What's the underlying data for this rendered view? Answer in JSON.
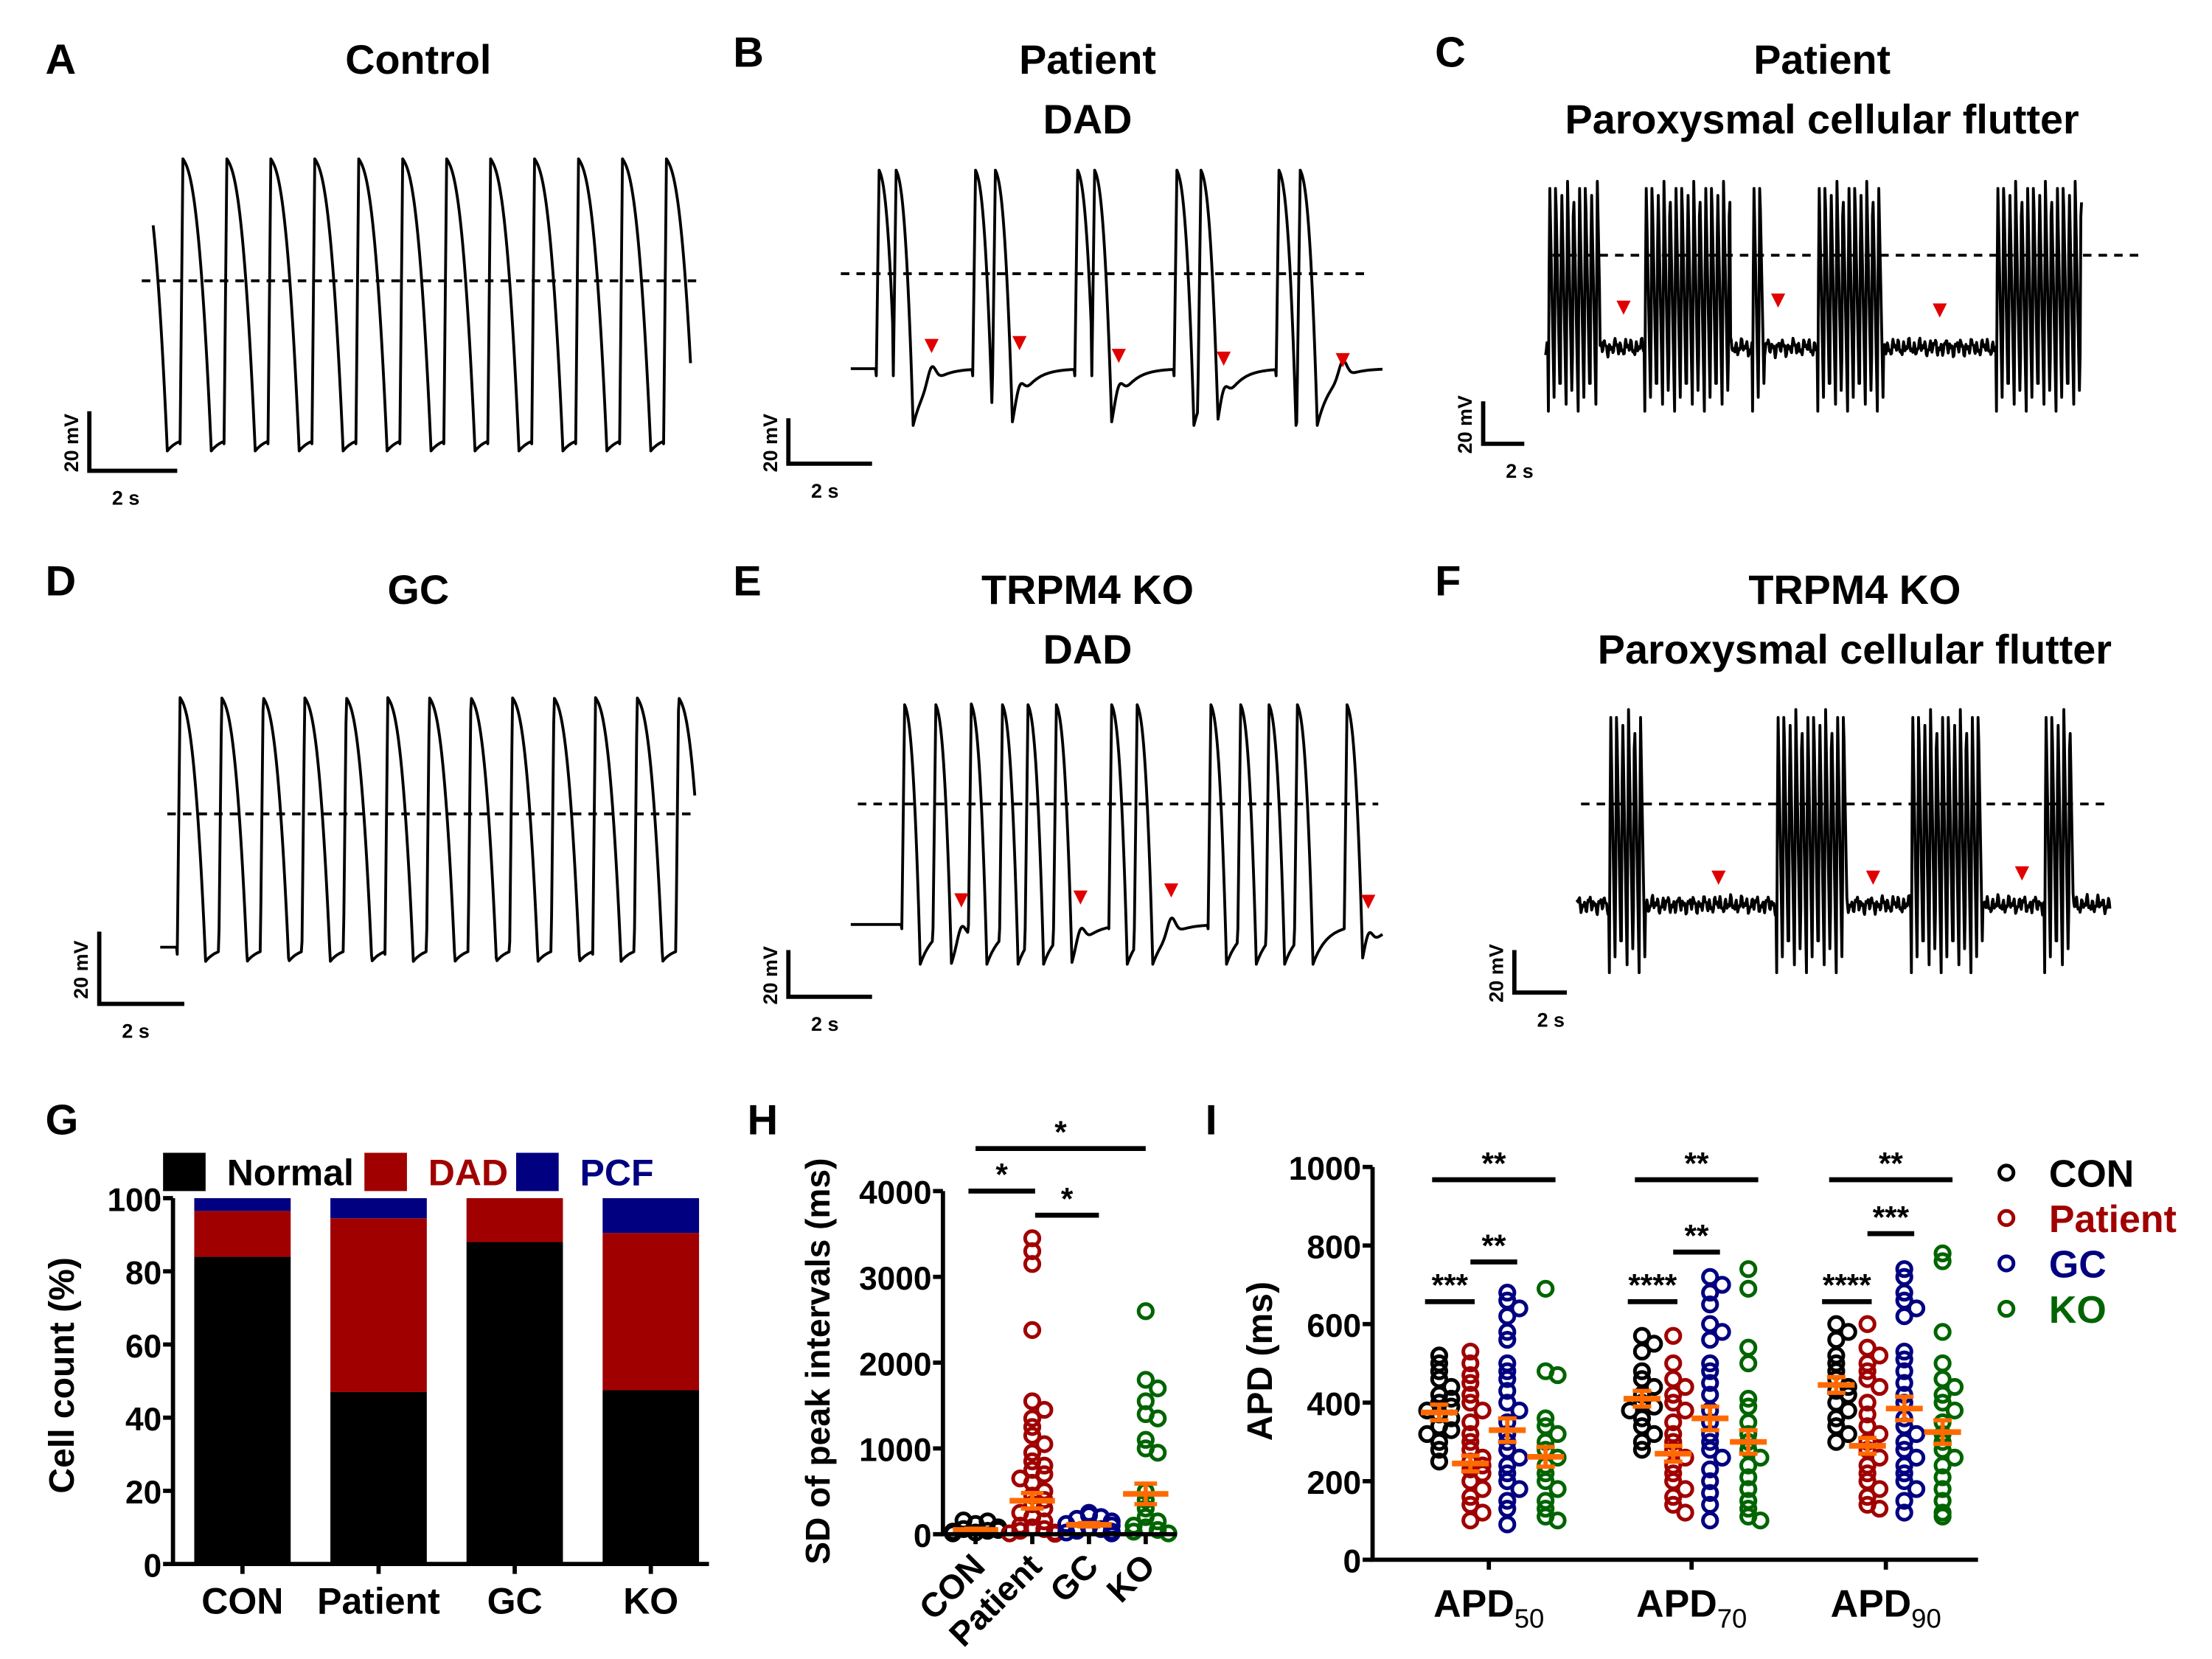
{
  "colors": {
    "con": "#000000",
    "patient": "#a00000",
    "gc": "#000080",
    "ko": "#006400",
    "mean": "#ff6a00",
    "arrow": "#e00000"
  },
  "panels": {
    "A": {
      "letter": "A",
      "title": [
        "Control"
      ]
    },
    "B": {
      "letter": "B",
      "title": [
        "Patient",
        "DAD"
      ]
    },
    "C": {
      "letter": "C",
      "title": [
        "Patient",
        "Paroxysmal cellular flutter"
      ]
    },
    "D": {
      "letter": "D",
      "title": [
        "GC"
      ]
    },
    "E": {
      "letter": "E",
      "title": [
        "TRPM4 KO",
        "DAD"
      ]
    },
    "F": {
      "letter": "F",
      "title": [
        "TRPM4 KO",
        "Paroxysmal cellular flutter"
      ]
    }
  },
  "scale_bar": {
    "voltage": "20 mV",
    "time": "2 s"
  },
  "chart_data": [
    {
      "panel": "G",
      "type": "bar",
      "stacked": true,
      "categories": [
        "CON",
        "Patient",
        "GC",
        "KO"
      ],
      "ylabel": "Cell count (%)",
      "ylim": [
        0,
        100
      ],
      "yticks": [
        0,
        20,
        40,
        60,
        80,
        100
      ],
      "legend_placement": "top",
      "series": [
        {
          "name": "Normal",
          "color": "#000000",
          "values": [
            84,
            47,
            88,
            47.5
          ]
        },
        {
          "name": "DAD",
          "color": "#a00000",
          "values": [
            12.5,
            47.5,
            12,
            43
          ]
        },
        {
          "name": "PCF",
          "color": "#000080",
          "values": [
            3.5,
            5.5,
            0,
            9.5
          ]
        }
      ]
    },
    {
      "panel": "H",
      "type": "scatter",
      "ylabel": "SD of peak intervals (ms)",
      "ylim": [
        0,
        4000
      ],
      "yticks": [
        0,
        1000,
        2000,
        3000,
        4000
      ],
      "categories": [
        "CON",
        "Patient",
        "GC",
        "KO"
      ],
      "groups": [
        {
          "name": "CON",
          "color": "#000000",
          "mean": 50,
          "sem": 15,
          "values": [
            20,
            40,
            60,
            80,
            120,
            150,
            160,
            30,
            50,
            10
          ]
        },
        {
          "name": "Patient",
          "color": "#a00000",
          "mean": 390,
          "sem": 90,
          "values": [
            3450,
            3300,
            3150,
            2380,
            1550,
            1450,
            1350,
            1250,
            1150,
            1050,
            950,
            850,
            800,
            750,
            700,
            650,
            600,
            500,
            450,
            400,
            350,
            300,
            250,
            200,
            150,
            100,
            80,
            60,
            40,
            20,
            10,
            5
          ]
        },
        {
          "name": "GC",
          "color": "#000080",
          "mean": 110,
          "sem": 20,
          "values": [
            250,
            220,
            200,
            180,
            150,
            120,
            100,
            80,
            60,
            40,
            30,
            20,
            10
          ]
        },
        {
          "name": "KO",
          "color": "#006400",
          "mean": 470,
          "sem": 120,
          "values": [
            2600,
            1800,
            1700,
            1550,
            1400,
            1350,
            1100,
            1000,
            950,
            500,
            400,
            300,
            200,
            150,
            100,
            80,
            50,
            30,
            10
          ]
        }
      ],
      "significance": [
        {
          "from": "CON",
          "to": "KO",
          "label": "*"
        },
        {
          "from": "CON",
          "to": "Patient",
          "label": "*"
        },
        {
          "from": "Patient",
          "to": "GC",
          "label": "*"
        }
      ]
    },
    {
      "panel": "I",
      "type": "scatter",
      "ylabel": "APD (ms)",
      "ylim": [
        0,
        1000
      ],
      "yticks": [
        0,
        200,
        400,
        600,
        800,
        1000
      ],
      "categories": [
        {
          "main": "APD",
          "sub": "50"
        },
        {
          "main": "APD",
          "sub": "70"
        },
        {
          "main": "APD",
          "sub": "90"
        }
      ],
      "legend": [
        {
          "name": "CON",
          "color": "#000000"
        },
        {
          "name": "Patient",
          "color": "#a00000"
        },
        {
          "name": "GC",
          "color": "#000080"
        },
        {
          "name": "KO",
          "color": "#006400"
        }
      ],
      "groups": [
        [
          {
            "name": "CON",
            "mean": 375,
            "sem": 20,
            "values": [
              520,
              500,
              480,
              460,
              440,
              420,
              410,
              400,
              390,
              380,
              370,
              360,
              340,
              330,
              320,
              300,
              280,
              250
            ]
          },
          {
            "name": "Patient",
            "mean": 245,
            "sem": 20,
            "values": [
              530,
              500,
              470,
              450,
              420,
              400,
              380,
              350,
              320,
              300,
              280,
              260,
              250,
              240,
              230,
              220,
              200,
              180,
              160,
              140,
              120,
              100
            ]
          },
          {
            "name": "GC",
            "mean": 330,
            "sem": 30,
            "values": [
              680,
              660,
              640,
              620,
              580,
              560,
              500,
              480,
              460,
              430,
              400,
              380,
              350,
              320,
              300,
              280,
              260,
              240,
              220,
              200,
              180,
              150,
              130,
              90
            ]
          },
          {
            "name": "KO",
            "mean": 262,
            "sem": 25,
            "values": [
              690,
              480,
              470,
              360,
              340,
              320,
              300,
              280,
              260,
              240,
              220,
              200,
              180,
              150,
              130,
              110,
              100
            ]
          }
        ],
        [
          {
            "name": "CON",
            "mean": 410,
            "sem": 20,
            "values": [
              570,
              550,
              530,
              480,
              460,
              440,
              420,
              400,
              390,
              380,
              360,
              340,
              320,
              300,
              280
            ]
          },
          {
            "name": "Patient",
            "mean": 270,
            "sem": 20,
            "values": [
              570,
              500,
              460,
              440,
              420,
              400,
              380,
              350,
              320,
              300,
              280,
              260,
              240,
              220,
              200,
              180,
              160,
              140,
              120
            ]
          },
          {
            "name": "GC",
            "mean": 360,
            "sem": 30,
            "values": [
              720,
              700,
              680,
              650,
              600,
              580,
              560,
              500,
              480,
              450,
              420,
              380,
              350,
              320,
              300,
              280,
              260,
              230,
              200,
              170,
              140,
              100
            ]
          },
          {
            "name": "KO",
            "mean": 300,
            "sem": 30,
            "values": [
              740,
              690,
              540,
              500,
              410,
              390,
              350,
              320,
              300,
              280,
              260,
              240,
              210,
              180,
              150,
              130,
              110,
              100
            ]
          }
        ],
        [
          {
            "name": "CON",
            "mean": 445,
            "sem": 20,
            "values": [
              600,
              580,
              560,
              520,
              500,
              480,
              460,
              440,
              430,
              420,
              400,
              380,
              360,
              340,
              320,
              300
            ]
          },
          {
            "name": "Patient",
            "mean": 290,
            "sem": 20,
            "values": [
              600,
              540,
              520,
              500,
              480,
              460,
              440,
              400,
              370,
              340,
              320,
              300,
              280,
              260,
              240,
              220,
              200,
              180,
              160,
              140,
              130
            ]
          },
          {
            "name": "GC",
            "mean": 385,
            "sem": 30,
            "values": [
              740,
              720,
              680,
              660,
              640,
              620,
              530,
              510,
              480,
              450,
              420,
              400,
              360,
              340,
              320,
              300,
              280,
              260,
              240,
              220,
              200,
              180,
              150,
              120
            ]
          },
          {
            "name": "KO",
            "mean": 325,
            "sem": 30,
            "values": [
              780,
              760,
              580,
              500,
              460,
              440,
              420,
              400,
              380,
              350,
              320,
              300,
              280,
              260,
              240,
              210,
              180,
              150,
              120,
              110
            ]
          }
        ]
      ],
      "significance": [
        [
          {
            "from": "CON",
            "to": "KO",
            "label": "**"
          },
          {
            "from": "CON",
            "to": "Patient",
            "label": "***"
          },
          {
            "from": "Patient",
            "to": "GC",
            "label": "**"
          }
        ],
        [
          {
            "from": "CON",
            "to": "KO",
            "label": "**"
          },
          {
            "from": "CON",
            "to": "Patient",
            "label": "****"
          },
          {
            "from": "Patient",
            "to": "GC",
            "label": "**"
          }
        ],
        [
          {
            "from": "CON",
            "to": "KO",
            "label": "**"
          },
          {
            "from": "CON",
            "to": "Patient",
            "label": "****"
          },
          {
            "from": "Patient",
            "to": "GC",
            "label": "***"
          }
        ]
      ]
    }
  ],
  "panel_letters": {
    "G": "G",
    "H": "H",
    "I": "I"
  }
}
